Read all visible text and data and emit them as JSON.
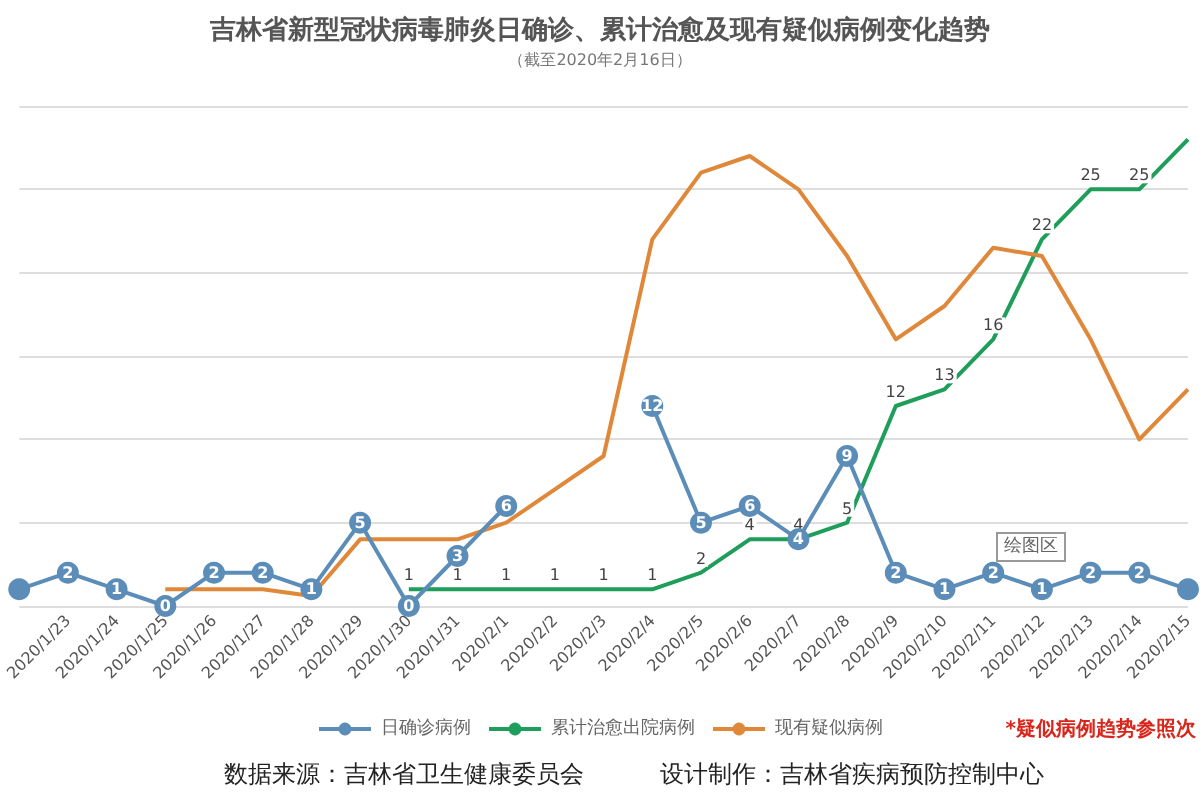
{
  "chart_data": {
    "type": "line",
    "title": "吉林省新型冠状病毒肺炎日确诊、累计治愈及现有疑似病例变化趋势",
    "subtitle": "（截至2020年2月16日）",
    "categories": [
      null,
      "2020/1/23",
      "2020/1/24",
      "2020/1/25",
      "2020/1/26",
      "2020/1/27",
      "2020/1/28",
      "2020/1/29",
      "2020/1/30",
      "2020/1/31",
      "2020/2/1",
      "2020/2/2",
      "2020/2/3",
      "2020/2/4",
      "2020/2/5",
      "2020/2/6",
      "2020/2/7",
      "2020/2/8",
      "2020/2/9",
      "2020/2/10",
      "2020/2/11",
      "2020/2/12",
      "2020/2/13",
      "2020/2/14",
      "2020/2/15"
    ],
    "series": [
      {
        "name": "日确诊病例",
        "color": "#5b8db8",
        "marker": "circle",
        "values": [
          1,
          2,
          1,
          0,
          2,
          2,
          1,
          5,
          0,
          3,
          6,
          null,
          null,
          12,
          5,
          6,
          4,
          9,
          2,
          1,
          2,
          1,
          2,
          2,
          1
        ],
        "value_labels": [
          null,
          "2",
          "1",
          "0",
          "2",
          "2",
          "1",
          "5",
          "0",
          "3",
          "6",
          null,
          null,
          "12",
          "5",
          "6",
          "4",
          "9",
          "2",
          "1",
          "2",
          "1",
          "2",
          "2",
          null
        ]
      },
      {
        "name": "累计治愈出院病例",
        "color": "#1e9e5a",
        "marker": "none",
        "values": [
          null,
          null,
          null,
          null,
          null,
          null,
          null,
          null,
          1,
          1,
          1,
          1,
          1,
          1,
          2,
          4,
          4,
          5,
          12,
          13,
          16,
          22,
          25,
          25,
          28
        ],
        "value_labels": [
          null,
          null,
          null,
          null,
          null,
          null,
          null,
          null,
          "1",
          "1",
          "1",
          "1",
          "1",
          "1",
          "2",
          "4",
          "4",
          "5",
          "12",
          "13",
          "16",
          "22",
          "25",
          "25",
          null
        ]
      },
      {
        "name": "现有疑似病例",
        "color": "#e0883a",
        "marker": "none",
        "values": [
          null,
          null,
          null,
          1,
          1,
          1,
          0.6,
          4,
          4,
          4,
          5,
          7,
          9,
          22,
          26,
          27,
          25,
          21,
          16,
          18,
          21.5,
          21,
          16,
          10,
          13
        ]
      }
    ],
    "ylim": [
      0,
      30
    ],
    "yticks": [
      {
        "value": 0,
        "label": null
      },
      {
        "value": 5,
        "label": null
      },
      {
        "value": 10,
        "label": null
      },
      {
        "value": 15,
        "label": null
      },
      {
        "value": 20,
        "label": null
      },
      {
        "value": 25,
        "label": null
      },
      {
        "value": 30,
        "label": null
      }
    ],
    "tick_labels": "x",
    "grid": "y",
    "legend": "bottom",
    "line_style": "solid",
    "annotations": [
      "绘图区",
      "*疑似病例趋势参照次",
      "数据来源：吉林省卫生健康委员会",
      "设计制作：吉林省疾病预防控制中心"
    ]
  }
}
